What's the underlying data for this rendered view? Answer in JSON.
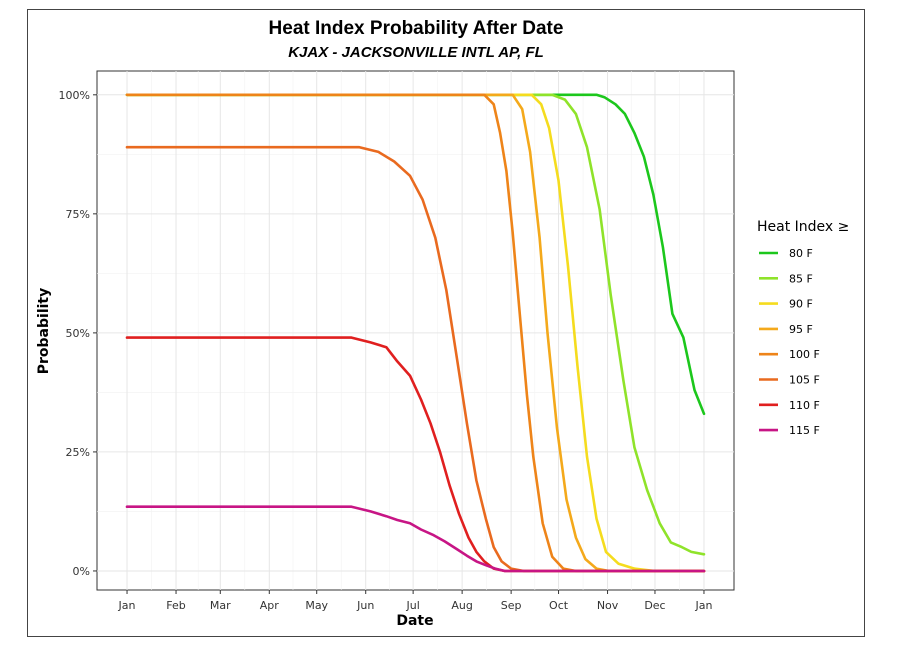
{
  "chart_data": {
    "type": "line",
    "title": "Heat Index Probability After Date",
    "subtitle": "KJAX - JACKSONVILLE INTL AP, FL",
    "xlabel": "Date",
    "ylabel": "Probability",
    "x_ticks": [
      "Jan",
      "Feb",
      "Mar",
      "Apr",
      "May",
      "Jun",
      "Jul",
      "Aug",
      "Sep",
      "Oct",
      "Nov",
      "Dec",
      "Jan"
    ],
    "x_tick_days": [
      1,
      32,
      60,
      91,
      121,
      152,
      182,
      213,
      244,
      274,
      305,
      335,
      366
    ],
    "x_range_days": [
      -18,
      385
    ],
    "y_ticks": [
      0,
      0.25,
      0.5,
      0.75,
      1.0
    ],
    "y_tick_labels": [
      "0%",
      "25%",
      "50%",
      "75%",
      "100%"
    ],
    "ylim": [
      -0.04,
      1.05
    ],
    "grid": true,
    "legend": {
      "title": "Heat Index ≥",
      "position": "right"
    },
    "series": [
      {
        "name": "80 F",
        "color": "#1cc71c",
        "x": [
          1,
          275,
          298,
          303,
          310,
          316,
          322,
          328,
          334,
          340,
          346,
          353,
          360,
          366
        ],
        "y": [
          1.0,
          1.0,
          1.0,
          0.995,
          0.98,
          0.96,
          0.92,
          0.87,
          0.79,
          0.68,
          0.54,
          0.49,
          0.38,
          0.33
        ]
      },
      {
        "name": "85 F",
        "color": "#8fe32a",
        "x": [
          1,
          270,
          278,
          285,
          292,
          300,
          307,
          315,
          322,
          330,
          338,
          345,
          352,
          358,
          366
        ],
        "y": [
          1.0,
          1.0,
          0.99,
          0.96,
          0.89,
          0.76,
          0.58,
          0.4,
          0.26,
          0.17,
          0.1,
          0.06,
          0.05,
          0.04,
          0.035
        ]
      },
      {
        "name": "90 F",
        "color": "#f5dc1e",
        "x": [
          1,
          257,
          263,
          268,
          274,
          280,
          286,
          292,
          298,
          304,
          312,
          322,
          335,
          366
        ],
        "y": [
          1.0,
          1.0,
          0.98,
          0.93,
          0.82,
          0.64,
          0.43,
          0.24,
          0.11,
          0.04,
          0.015,
          0.005,
          0,
          0
        ]
      },
      {
        "name": "95 F",
        "color": "#f4a91b",
        "x": [
          1,
          245,
          251,
          256,
          262,
          267,
          273,
          279,
          285,
          291,
          298,
          306,
          366
        ],
        "y": [
          1.0,
          1.0,
          0.97,
          0.88,
          0.7,
          0.5,
          0.3,
          0.15,
          0.07,
          0.025,
          0.005,
          0,
          0
        ]
      },
      {
        "name": "100 F",
        "color": "#ee8419",
        "x": [
          1,
          227,
          233,
          237,
          241,
          245,
          250,
          254,
          258,
          264,
          270,
          277,
          285,
          366
        ],
        "y": [
          1.0,
          1.0,
          0.98,
          0.92,
          0.84,
          0.71,
          0.52,
          0.37,
          0.24,
          0.1,
          0.03,
          0.005,
          0,
          0
        ]
      },
      {
        "name": "105 F",
        "color": "#e96a1f",
        "x": [
          1,
          148,
          160,
          170,
          180,
          188,
          196,
          203,
          210,
          216,
          222,
          228,
          233,
          238,
          244,
          252,
          262,
          275,
          366
        ],
        "y": [
          0.89,
          0.89,
          0.88,
          0.86,
          0.83,
          0.78,
          0.7,
          0.59,
          0.44,
          0.31,
          0.19,
          0.11,
          0.05,
          0.02,
          0.005,
          0,
          0,
          0,
          0
        ]
      },
      {
        "name": "110 F",
        "color": "#e01f1f",
        "x": [
          1,
          143,
          155,
          165,
          172,
          180,
          187,
          193,
          199,
          205,
          211,
          217,
          222,
          227,
          233,
          240,
          250,
          366
        ],
        "y": [
          0.49,
          0.49,
          0.48,
          0.47,
          0.44,
          0.41,
          0.36,
          0.31,
          0.25,
          0.18,
          0.12,
          0.07,
          0.04,
          0.02,
          0.005,
          0,
          0,
          0
        ]
      },
      {
        "name": "115 F",
        "color": "#c71585",
        "x": [
          1,
          143,
          155,
          165,
          172,
          180,
          187,
          195,
          202,
          210,
          216,
          222,
          228,
          234,
          240,
          250,
          366
        ],
        "y": [
          0.135,
          0.135,
          0.125,
          0.115,
          0.107,
          0.1,
          0.087,
          0.075,
          0.062,
          0.045,
          0.032,
          0.02,
          0.012,
          0.005,
          0,
          0,
          0
        ]
      }
    ]
  }
}
